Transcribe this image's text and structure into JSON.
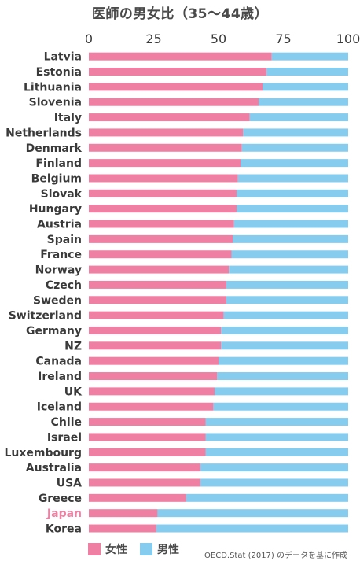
{
  "chart_data": {
    "type": "bar",
    "stacked": true,
    "orientation": "horizontal",
    "title": "医師の男女比（35〜44歳）",
    "xlim": [
      0,
      100
    ],
    "xticks": [
      "0",
      "25",
      "50",
      "75",
      "100"
    ],
    "categories": [
      "Latvia",
      "Estonia",
      "Lithuania",
      "Slovenia",
      "Italy",
      "Netherlands",
      "Denmark",
      "Finland",
      "Belgium",
      "Slovak",
      "Hungary",
      "Austria",
      "Spain",
      "France",
      "Norway",
      "Czech",
      "Sweden",
      "Switzerland",
      "Germany",
      "NZ",
      "Canada",
      "Ireland",
      "UK",
      "Iceland",
      "Chile",
      "Israel",
      "Luxembourg",
      "Australia",
      "USA",
      "Greece",
      "Japan",
      "Korea"
    ],
    "highlight_category": "Japan",
    "series": [
      {
        "name": "女性",
        "color": "#ef7fa3",
        "values": [
          70.5,
          68.5,
          67,
          65.5,
          62,
          59.5,
          59,
          58.5,
          57.5,
          57,
          57,
          56,
          55.5,
          55,
          54,
          53,
          53,
          52,
          51,
          51,
          50,
          49.5,
          48.5,
          48,
          45,
          45,
          45,
          43,
          43,
          37.5,
          26.5,
          26
        ]
      },
      {
        "name": "男性",
        "color": "#86ccef",
        "values": [
          29.5,
          31.5,
          33,
          34.5,
          38,
          40.5,
          41,
          41.5,
          42.5,
          43,
          43,
          44,
          44.5,
          45,
          46,
          47,
          47,
          48,
          49,
          49,
          50,
          50.5,
          51.5,
          52,
          55,
          55,
          55,
          57,
          57,
          62.5,
          73.5,
          74
        ]
      }
    ],
    "legend": {
      "placement": "bottom-left"
    },
    "source": "OECD.Stat (2017) のデータを基に作成",
    "highlight_color": "#ef7fa3"
  }
}
